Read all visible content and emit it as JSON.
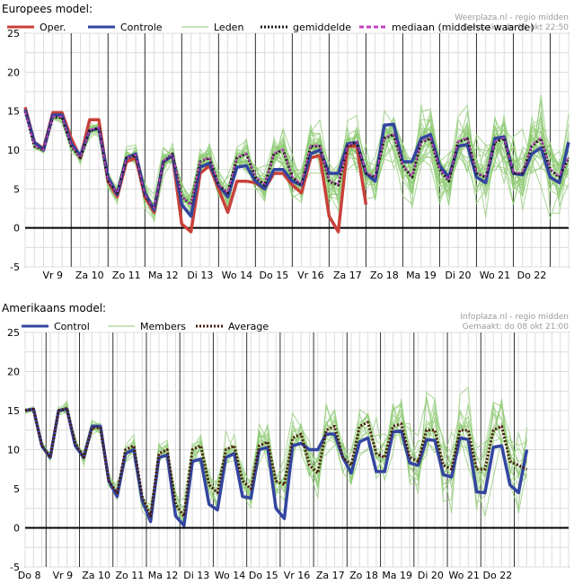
{
  "chart_data": [
    {
      "type": "line",
      "title": "Europees model:",
      "credit": [
        "Weerplaza.nl - regio midden",
        "Gemaakt: do 08 okt 22:50"
      ],
      "ylim": [
        -5,
        25
      ],
      "yticks": [
        -5,
        0,
        5,
        10,
        15,
        20,
        25
      ],
      "xlim": [
        0,
        59
      ],
      "day_labels": [
        "Vr 9",
        "Za 10",
        "Zo 11",
        "Ma 12",
        "Di 13",
        "Wo 14",
        "Do 15",
        "Vr 16",
        "Za 17",
        "Zo 18",
        "Ma 19",
        "Di 20",
        "Wo 21",
        "Do 22"
      ],
      "day_label_x": [
        3,
        7,
        11,
        15,
        19,
        23,
        27,
        31,
        35,
        39,
        43,
        47,
        51,
        55
      ],
      "legend": [
        {
          "key": "oper",
          "label": "Oper.",
          "color": "#c8413a"
        },
        {
          "key": "control",
          "label": "Controle",
          "color": "#3345a0"
        },
        {
          "key": "members",
          "label": "Leden",
          "color": "#8fcb74"
        },
        {
          "key": "mean",
          "label": "gemiddelde",
          "color": "#1a1a1a"
        },
        {
          "key": "median",
          "label": "mediaan (middelste waarde)",
          "color": "#c040c0"
        }
      ],
      "series": [
        {
          "name": "Oper.",
          "x": [
            0,
            1,
            2,
            3,
            4,
            5,
            6,
            7,
            8,
            9,
            10,
            11,
            12,
            13,
            14,
            15,
            16,
            17,
            18,
            19,
            20,
            21,
            22,
            23,
            24,
            25,
            26,
            27,
            28,
            29,
            30,
            31,
            32,
            33,
            34,
            35,
            36,
            37
          ],
          "values": [
            15.5,
            11.0,
            10.2,
            14.8,
            14.8,
            11.5,
            9.0,
            13.9,
            13.9,
            6.0,
            4.0,
            8.5,
            9.0,
            4.0,
            2.0,
            8.5,
            9.3,
            0.5,
            -0.5,
            7.0,
            8.0,
            5.0,
            2.0,
            6.0,
            6.0,
            5.8,
            5.0,
            7.0,
            7.0,
            5.5,
            4.5,
            9.0,
            9.3,
            1.5,
            -0.5,
            10.5,
            10.5,
            3.0
          ]
        },
        {
          "name": "Controle",
          "x": [
            0,
            1,
            2,
            3,
            4,
            5,
            6,
            7,
            8,
            9,
            10,
            11,
            12,
            13,
            14,
            15,
            16,
            17,
            18,
            19,
            20,
            21,
            22,
            23,
            24,
            25,
            26,
            27,
            28,
            29,
            30,
            31,
            32,
            33,
            34,
            35,
            36,
            37,
            38,
            39,
            40,
            41,
            42,
            43,
            44,
            45,
            46,
            47,
            48,
            49,
            50,
            51,
            52,
            53,
            54,
            55,
            56,
            57,
            58,
            59
          ],
          "values": [
            15.2,
            11.0,
            10.0,
            14.5,
            14.5,
            10.8,
            9.3,
            12.5,
            12.8,
            6.5,
            4.3,
            9.0,
            9.5,
            4.5,
            2.3,
            8.5,
            9.3,
            3.0,
            1.5,
            7.8,
            8.3,
            5.5,
            4.0,
            7.8,
            8.0,
            6.0,
            5.0,
            7.5,
            7.5,
            6.0,
            5.5,
            9.5,
            10.0,
            7.0,
            7.0,
            10.8,
            11.0,
            7.0,
            6.0,
            13.2,
            13.3,
            8.5,
            8.5,
            11.5,
            12.0,
            8.0,
            6.5,
            10.5,
            10.7,
            6.5,
            5.8,
            11.5,
            11.7,
            7.0,
            6.8,
            9.5,
            10.3,
            6.5,
            5.8,
            11.0
          ]
        },
        {
          "name": "gemiddelde",
          "x": [
            0,
            1,
            2,
            3,
            4,
            5,
            6,
            7,
            8,
            9,
            10,
            11,
            12,
            13,
            14,
            15,
            16,
            17,
            18,
            19,
            20,
            21,
            22,
            23,
            24,
            25,
            26,
            27,
            28,
            29,
            30,
            31,
            32,
            33,
            34,
            35,
            36,
            37,
            38,
            39,
            40,
            41,
            42,
            43,
            44,
            45,
            46,
            47,
            48,
            49,
            50,
            51,
            52,
            53,
            54,
            55,
            56,
            57,
            58,
            59
          ],
          "values": [
            15.0,
            10.5,
            10.0,
            14.2,
            14.2,
            10.5,
            9.0,
            12.5,
            12.8,
            6.0,
            4.5,
            9.0,
            9.3,
            4.2,
            2.5,
            8.5,
            9.5,
            4.0,
            3.0,
            8.5,
            9.0,
            5.5,
            4.5,
            9.0,
            9.5,
            6.5,
            5.5,
            9.5,
            10.0,
            6.5,
            5.5,
            10.5,
            10.5,
            6.0,
            5.5,
            10.5,
            11.0,
            7.0,
            6.5,
            11.5,
            12.0,
            8.0,
            6.5,
            11.0,
            11.5,
            7.5,
            6.0,
            11.0,
            11.5,
            7.0,
            6.5,
            11.0,
            11.5,
            7.0,
            7.0,
            10.5,
            11.5,
            7.5,
            6.5,
            9.0
          ]
        },
        {
          "name": "mediaan (middelste waarde)",
          "x": [
            0,
            1,
            2,
            3,
            4,
            5,
            6,
            7,
            8,
            9,
            10,
            11,
            12,
            13,
            14,
            15,
            16,
            17,
            18,
            19,
            20,
            21,
            22,
            23,
            24,
            25,
            26,
            27,
            28,
            29,
            30,
            31,
            32,
            33,
            34,
            35,
            36,
            37,
            38,
            39,
            40,
            41,
            42,
            43,
            44,
            45,
            46,
            47,
            48,
            49,
            50,
            51,
            52,
            53,
            54,
            55,
            56,
            57,
            58,
            59
          ],
          "values": [
            15.0,
            10.6,
            10.0,
            14.3,
            14.3,
            10.6,
            9.0,
            12.6,
            12.9,
            6.1,
            4.5,
            9.0,
            9.4,
            4.3,
            2.5,
            8.6,
            9.5,
            4.0,
            3.0,
            8.5,
            9.1,
            5.6,
            4.5,
            9.1,
            9.6,
            6.6,
            5.6,
            9.6,
            10.1,
            6.6,
            5.6,
            10.6,
            10.6,
            6.1,
            5.6,
            10.6,
            11.1,
            7.1,
            6.6,
            11.6,
            12.1,
            8.1,
            6.6,
            11.1,
            11.6,
            7.6,
            6.1,
            11.1,
            11.6,
            7.1,
            6.6,
            11.1,
            11.6,
            7.1,
            7.1,
            10.6,
            11.6,
            7.6,
            6.6,
            9.1
          ]
        }
      ]
    },
    {
      "type": "line",
      "title": "Amerikaans model:",
      "credit": [
        "Infoplaza.nl - regio midden",
        "Gemaakt: do 08 okt 21:00"
      ],
      "ylim": [
        -5,
        25
      ],
      "yticks": [
        -5,
        0,
        5,
        10,
        15,
        20,
        25
      ],
      "xlim": [
        0,
        65
      ],
      "day_labels": [
        "Do 8",
        "Vr 9",
        "Za 10",
        "Zo 11",
        "Ma 12",
        "Di 13",
        "Wo 14",
        "Do 15",
        "Vr 16",
        "Za 17",
        "Zo 18",
        "Ma 19",
        "Di 20",
        "Wo 21",
        "Do 22"
      ],
      "day_label_x": [
        0.5,
        4.5,
        8.5,
        12.5,
        16.5,
        20.5,
        24.5,
        28.5,
        32.5,
        36.5,
        40.5,
        44.5,
        48.5,
        52.5,
        56.5
      ],
      "legend": [
        {
          "key": "control",
          "label": "Control",
          "color": "#3345a0"
        },
        {
          "key": "members",
          "label": "Members",
          "color": "#8fcb74"
        },
        {
          "key": "mean",
          "label": "Average",
          "color": "#4a1a0a"
        }
      ],
      "series": [
        {
          "name": "Control",
          "x": [
            0,
            1,
            2,
            3,
            4,
            5,
            6,
            7,
            8,
            9,
            10,
            11,
            12,
            13,
            14,
            15,
            16,
            17,
            18,
            19,
            20,
            21,
            22,
            23,
            24,
            25,
            26,
            27,
            28,
            29,
            30,
            31,
            32,
            33,
            34,
            35,
            36,
            37,
            38,
            39,
            40,
            41,
            42,
            43,
            44,
            45,
            46,
            47,
            48,
            49,
            50,
            51,
            52,
            53,
            54,
            55,
            56,
            57,
            58,
            59,
            60
          ],
          "values": [
            15.0,
            15.2,
            10.5,
            9.0,
            15.0,
            15.2,
            10.5,
            9.0,
            13.0,
            13.0,
            6.0,
            4.0,
            9.5,
            10.0,
            3.5,
            0.8,
            9.0,
            9.3,
            1.5,
            0.3,
            8.5,
            8.8,
            3.0,
            2.3,
            9.0,
            9.5,
            4.0,
            3.8,
            10.0,
            10.3,
            2.5,
            1.2,
            10.5,
            10.8,
            10.0,
            10.0,
            12.0,
            12.0,
            9.0,
            7.0,
            11.0,
            11.5,
            7.2,
            7.2,
            12.3,
            12.4,
            8.3,
            8.0,
            11.3,
            11.2,
            6.8,
            6.5,
            11.5,
            11.3,
            4.6,
            4.5,
            10.3,
            10.5,
            5.5,
            4.5,
            10.0
          ]
        },
        {
          "name": "Average",
          "x": [
            0,
            1,
            2,
            3,
            4,
            5,
            6,
            7,
            8,
            9,
            10,
            11,
            12,
            13,
            14,
            15,
            16,
            17,
            18,
            19,
            20,
            21,
            22,
            23,
            24,
            25,
            26,
            27,
            28,
            29,
            30,
            31,
            32,
            33,
            34,
            35,
            36,
            37,
            38,
            39,
            40,
            41,
            42,
            43,
            44,
            45,
            46,
            47,
            48,
            49,
            50,
            51,
            52,
            53,
            54,
            55,
            56,
            57,
            58,
            59,
            60
          ],
          "values": [
            15.0,
            15.2,
            10.5,
            9.0,
            15.0,
            15.3,
            10.8,
            9.0,
            12.8,
            12.8,
            6.0,
            4.5,
            10.0,
            10.5,
            4.0,
            1.5,
            9.5,
            10.0,
            3.0,
            1.5,
            10.0,
            10.5,
            5.5,
            4.5,
            10.0,
            10.5,
            6.0,
            5.0,
            10.5,
            11.0,
            6.0,
            5.5,
            11.5,
            12.0,
            8.0,
            7.0,
            12.5,
            13.0,
            9.0,
            8.0,
            13.0,
            13.5,
            9.5,
            9.0,
            13.0,
            13.3,
            9.0,
            8.5,
            12.5,
            12.5,
            8.0,
            7.5,
            12.5,
            12.5,
            7.5,
            7.5,
            12.5,
            13.0,
            8.5,
            8.0,
            7.5
          ]
        }
      ]
    }
  ]
}
